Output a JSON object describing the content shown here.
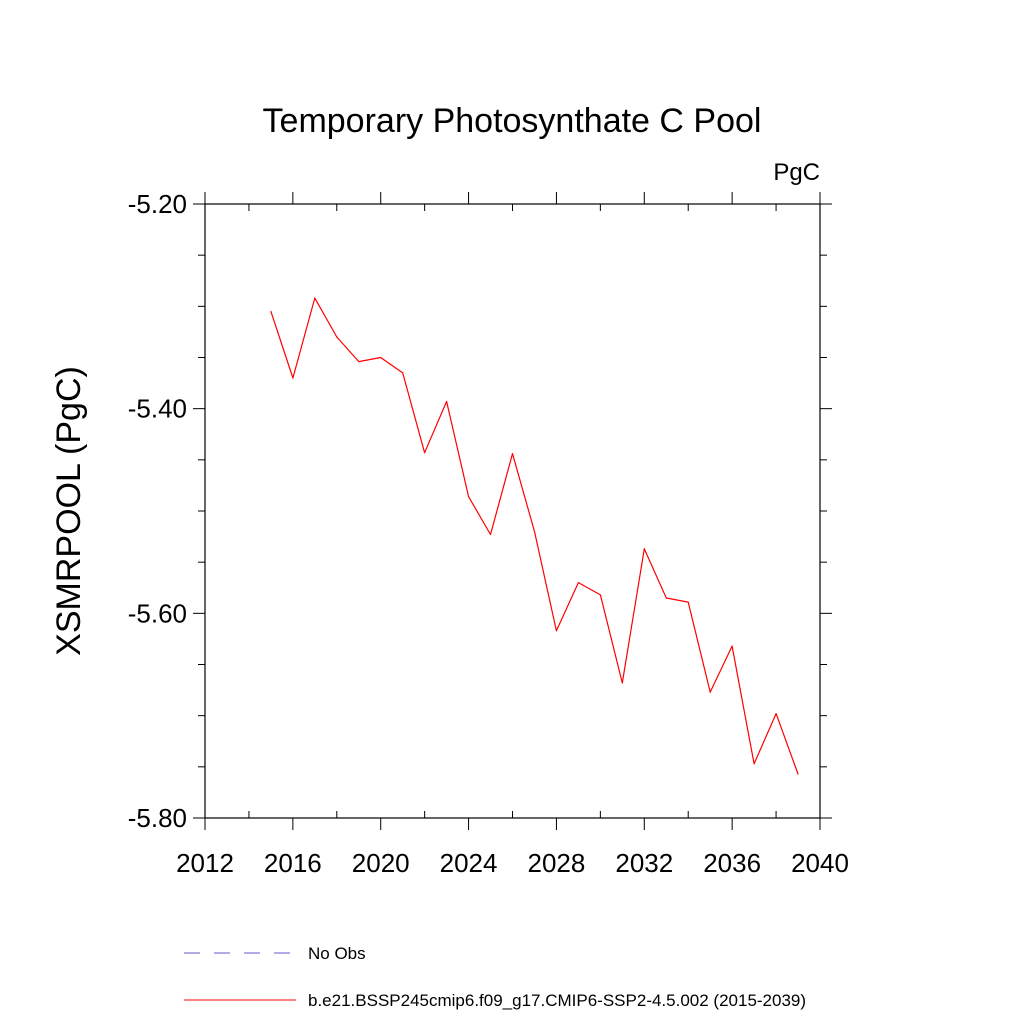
{
  "chart_data": {
    "type": "line",
    "title": "Temporary Photosynthate C Pool",
    "units_label": "PgC",
    "ylabel": "XSMRPOOL  (PgC)",
    "xlabel": "",
    "xlim": [
      2012,
      2040
    ],
    "ylim": [
      -5.8,
      -5.2
    ],
    "x_ticks": [
      2012,
      2016,
      2020,
      2024,
      2028,
      2032,
      2036,
      2040
    ],
    "x_minor_ticks": [
      2014,
      2018,
      2022,
      2026,
      2030,
      2034,
      2038
    ],
    "y_ticks": [
      -5.2,
      -5.4,
      -5.6,
      -5.8
    ],
    "y_tick_labels": [
      "-5.20",
      "-5.40",
      "-5.60",
      "-5.80"
    ],
    "y_minor_ticks": [
      -5.25,
      -5.3,
      -5.35,
      -5.45,
      -5.5,
      -5.55,
      -5.65,
      -5.7,
      -5.75
    ],
    "grid": false,
    "legend_position": "bottom",
    "series": [
      {
        "name": "b.e21.BSSP245cmip6.f09_g17.CMIP6-SSP2-4.5.002 (2015-2039)",
        "color": "#ff0000",
        "style": "solid",
        "x": [
          2015,
          2016,
          2017,
          2018,
          2019,
          2020,
          2021,
          2022,
          2023,
          2024,
          2025,
          2026,
          2027,
          2028,
          2029,
          2030,
          2031,
          2032,
          2033,
          2034,
          2035,
          2036,
          2037,
          2038,
          2039
        ],
        "y": [
          -5.305,
          -5.37,
          -5.292,
          -5.33,
          -5.354,
          -5.35,
          -5.365,
          -5.443,
          -5.393,
          -5.486,
          -5.523,
          -5.444,
          -5.52,
          -5.617,
          -5.57,
          -5.582,
          -5.668,
          -5.537,
          -5.585,
          -5.589,
          -5.677,
          -5.632,
          -5.747,
          -5.698,
          -5.757
        ]
      }
    ],
    "legend": [
      {
        "label": "No Obs",
        "color": "#6a5acd",
        "style": "dashed"
      },
      {
        "label": "b.e21.BSSP245cmip6.f09_g17.CMIP6-SSP2-4.5.002 (2015-2039)",
        "color": "#ff0000",
        "style": "solid"
      }
    ]
  }
}
